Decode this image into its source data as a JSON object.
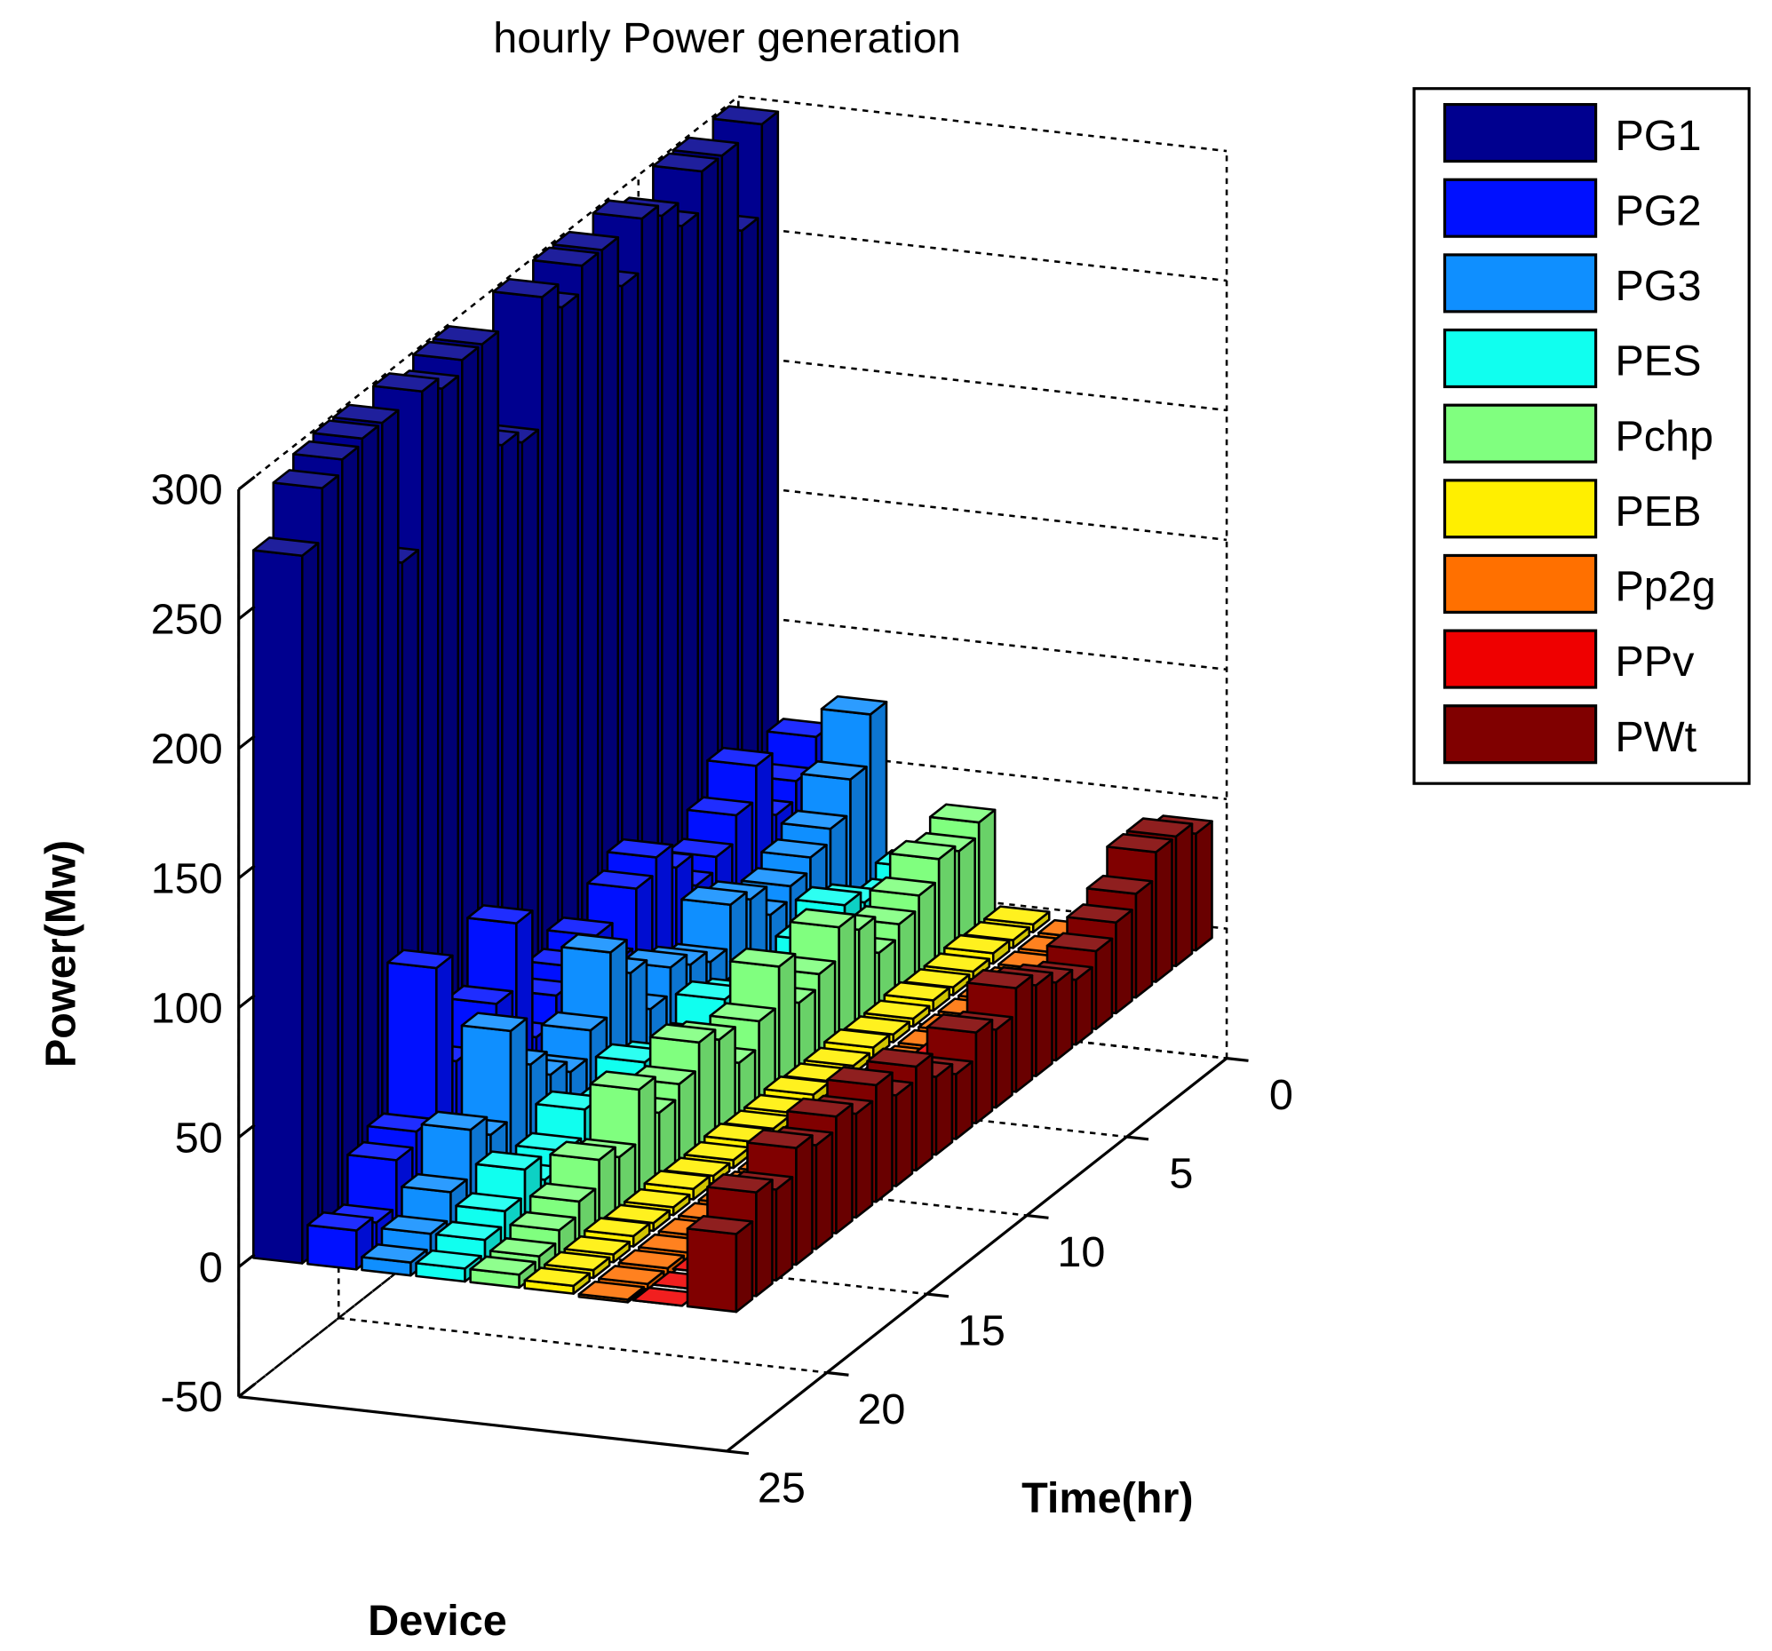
{
  "chart_data": {
    "type": "bar3",
    "title": "hourly Power generation",
    "zlabel": "Power(Mw)",
    "xlabel": "Time(hr)",
    "devlabel": "Device",
    "x": [
      1,
      2,
      3,
      4,
      5,
      6,
      7,
      8,
      9,
      10,
      11,
      12,
      13,
      14,
      15,
      16,
      17,
      18,
      19,
      20,
      21,
      22,
      23,
      24
    ],
    "xlim": [
      0,
      25
    ],
    "xticks": [
      0,
      5,
      10,
      15,
      20,
      25
    ],
    "zlim": [
      -50,
      300
    ],
    "zticks": [
      -50,
      0,
      50,
      100,
      150,
      200,
      250,
      300
    ],
    "grid": true,
    "legend": "outside-right",
    "series": [
      {
        "name": "PG1",
        "color": "#00008f",
        "values": [
          300,
          265,
          300,
          300,
          285,
          295,
          300,
          280,
          300,
          300,
          290,
          300,
          250,
          255,
          300,
          300,
          295,
          300,
          240,
          300,
          300,
          298,
          293,
          273
        ]
      },
      {
        "name": "PG2",
        "color": "#0010ff",
        "values": [
          66,
          55,
          48,
          73,
          60,
          50,
          45,
          58,
          68,
          62,
          40,
          56,
          50,
          45,
          35,
          85,
          60,
          40,
          50,
          92,
          35,
          30,
          12,
          15
        ]
      },
      {
        "name": "PG3",
        "color": "#0f8fff",
        "values": [
          77,
          58,
          45,
          40,
          35,
          30,
          42,
          46,
          30,
          35,
          40,
          30,
          50,
          64,
          40,
          30,
          35,
          45,
          64,
          30,
          38,
          20,
          10,
          5
        ]
      },
      {
        "name": "PES",
        "color": "#10ffef",
        "values": [
          20,
          15,
          10,
          25,
          30,
          22,
          15,
          10,
          20,
          25,
          30,
          20,
          15,
          25,
          30,
          20,
          15,
          30,
          20,
          15,
          25,
          15,
          10,
          5
        ]
      },
      {
        "name": "Pchp",
        "color": "#80ff7f",
        "values": [
          40,
          35,
          38,
          30,
          25,
          20,
          35,
          42,
          30,
          25,
          45,
          30,
          20,
          35,
          40,
          30,
          25,
          40,
          20,
          25,
          15,
          10,
          6,
          5
        ]
      },
      {
        "name": "PEB",
        "color": "#ffef00",
        "values": [
          3,
          3,
          4,
          3,
          3,
          4,
          3,
          3,
          4,
          3,
          3,
          4,
          3,
          3,
          4,
          3,
          3,
          4,
          3,
          3,
          4,
          3,
          3,
          3
        ]
      },
      {
        "name": "Pp2g",
        "color": "#ff7000",
        "values": [
          -5,
          -8,
          -10,
          -12,
          -6,
          -4,
          -3,
          -2,
          -5,
          -8,
          -3,
          -2,
          -4,
          -6,
          -10,
          -3,
          -2,
          -4,
          -3,
          -12,
          -5,
          -3,
          -2,
          -1
        ]
      },
      {
        "name": "PPv",
        "color": "#ef0000",
        "values": [
          0,
          0,
          0,
          0,
          0,
          0,
          2,
          5,
          8,
          10,
          12,
          14,
          12,
          10,
          8,
          5,
          2,
          0,
          0,
          0,
          0,
          0,
          0,
          0
        ]
      },
      {
        "name": "PWt",
        "color": "#800000",
        "values": [
          45,
          50,
          50,
          40,
          35,
          30,
          25,
          30,
          35,
          40,
          30,
          35,
          25,
          30,
          40,
          35,
          45,
          40,
          45,
          40,
          45,
          35,
          40,
          30
        ]
      }
    ]
  }
}
